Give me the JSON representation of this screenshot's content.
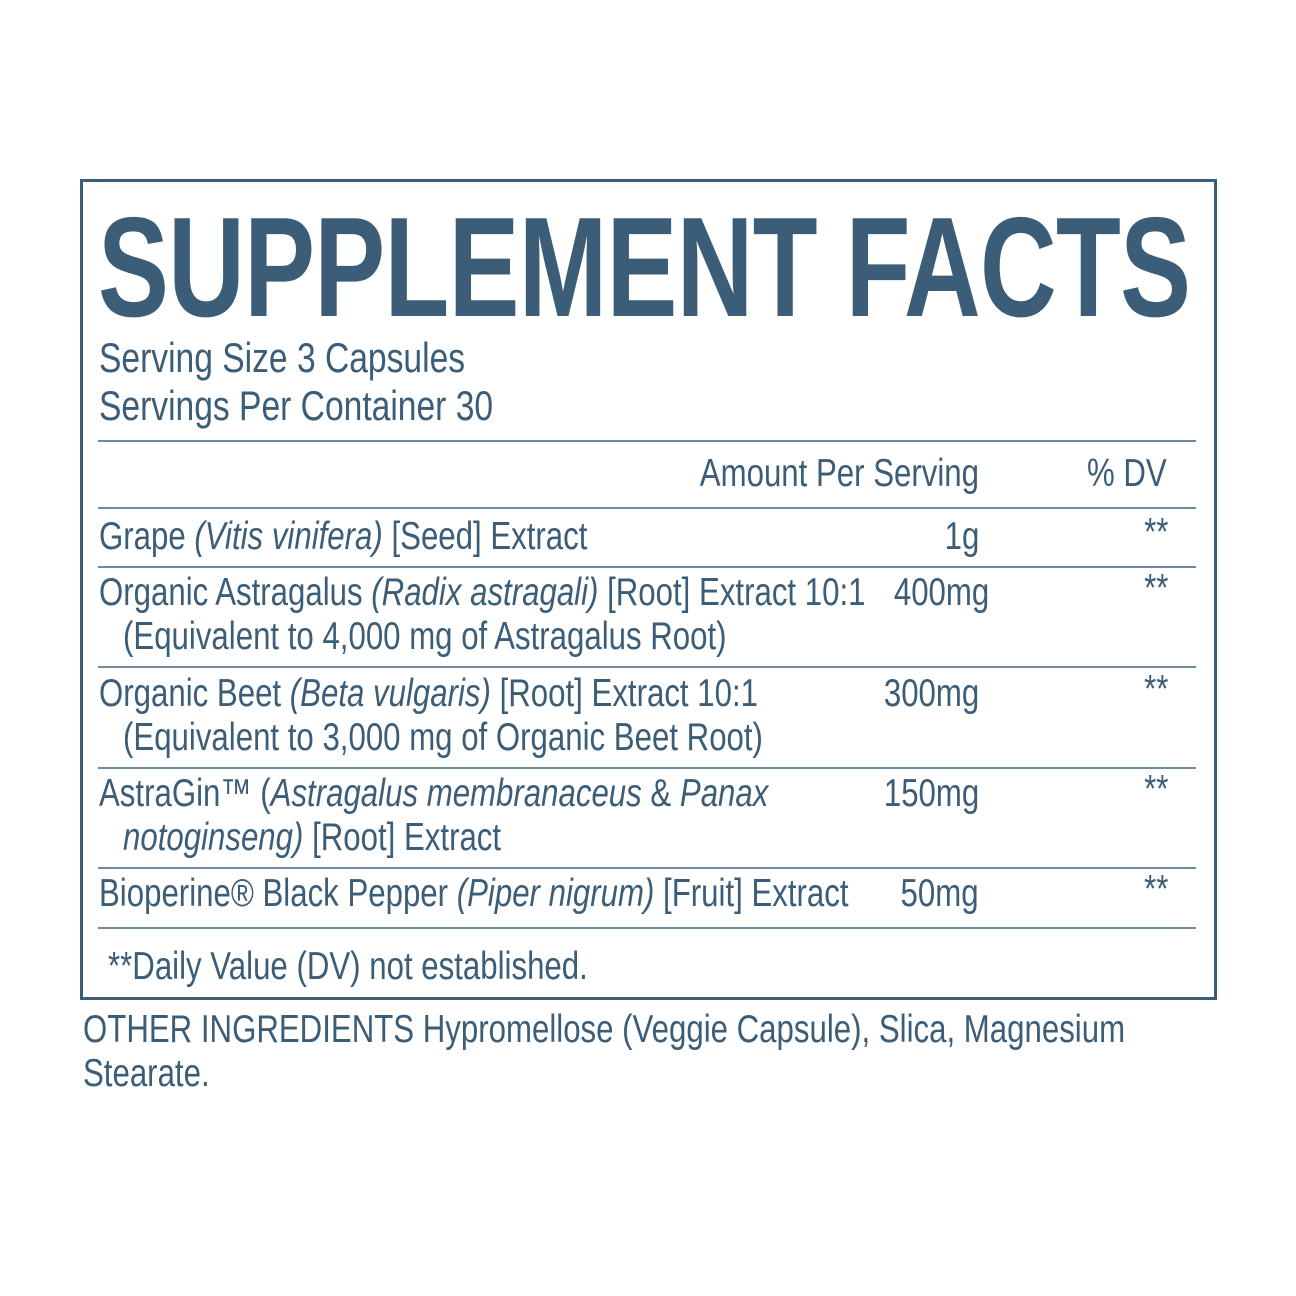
{
  "title": "SUPPLEMENT FACTS",
  "serving_size": "Serving Size 3 Capsules",
  "servings_per_container": "Servings Per Container 30",
  "header": {
    "amount": "Amount Per Serving",
    "dv": "% DV"
  },
  "ingredients": [
    {
      "lines": [
        [
          {
            "t": "Grape "
          },
          {
            "t": "(Vitis vinifera)",
            "i": true
          },
          {
            "t": " [Seed] Extract"
          }
        ]
      ],
      "amount": "1g",
      "dv": "**"
    },
    {
      "lines": [
        [
          {
            "t": "Organic Astragalus "
          },
          {
            "t": "(Radix astragali)",
            "i": true
          },
          {
            "t": " [Root] Extract 10:1"
          }
        ],
        [
          {
            "t": "(Equivalent to 4,000 mg of Astragalus Root)"
          }
        ]
      ],
      "amount": "400mg",
      "dv": "**"
    },
    {
      "lines": [
        [
          {
            "t": "Organic Beet "
          },
          {
            "t": "(Beta vulgaris)",
            "i": true
          },
          {
            "t": " [Root] Extract 10:1"
          }
        ],
        [
          {
            "t": "(Equivalent to 3,000 mg of Organic Beet Root)"
          }
        ]
      ],
      "amount": "300mg",
      "dv": "**"
    },
    {
      "lines": [
        [
          {
            "t": "AstraGin™ ("
          },
          {
            "t": "Astragalus membranaceus",
            "i": true
          },
          {
            "t": " & "
          },
          {
            "t": "Panax",
            "i": true
          }
        ],
        [
          {
            "t": "notoginseng)",
            "i": true
          },
          {
            "t": " [Root] Extract"
          }
        ]
      ],
      "amount": "150mg",
      "dv": "**"
    },
    {
      "lines": [
        [
          {
            "t": "Bioperine® Black Pepper "
          },
          {
            "t": "(Piper nigrum)",
            "i": true
          },
          {
            "t": " [Fruit] Extract"
          }
        ]
      ],
      "amount": "50mg",
      "dv": "**"
    }
  ],
  "footnote": "**Daily Value (DV) not established.",
  "other_ingredients": "OTHER INGREDIENTS Hypromellose (Veggie Capsule), Slica, Magnesium",
  "other_ingredients_cont": "Stearate.",
  "colors": {
    "text": "#3b5d78",
    "border": "#3b5d78"
  }
}
